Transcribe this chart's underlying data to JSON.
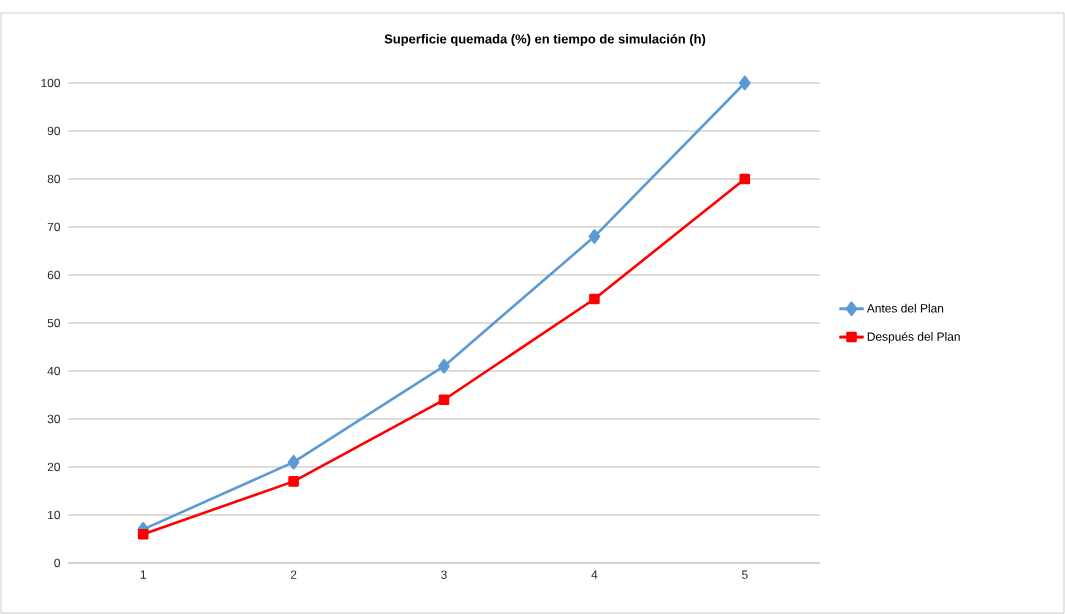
{
  "chart_data": {
    "type": "line",
    "title": "Superficie quemada (%) en tiempo de simulación (h)",
    "categories": [
      "1",
      "2",
      "3",
      "4",
      "5"
    ],
    "series": [
      {
        "name": "Antes del Plan",
        "color": "#5b9bd5",
        "marker": "diamond",
        "values": [
          7,
          21,
          41,
          68,
          100
        ]
      },
      {
        "name": "Después del Plan",
        "color": "#ff0000",
        "marker": "square",
        "values": [
          6,
          17,
          34,
          55,
          80
        ]
      }
    ],
    "ylim": [
      0,
      100
    ],
    "yticks": [
      0,
      10,
      20,
      30,
      40,
      50,
      60,
      70,
      80,
      90,
      100
    ],
    "grid": "y",
    "legend": "right",
    "line_style": "solid"
  }
}
